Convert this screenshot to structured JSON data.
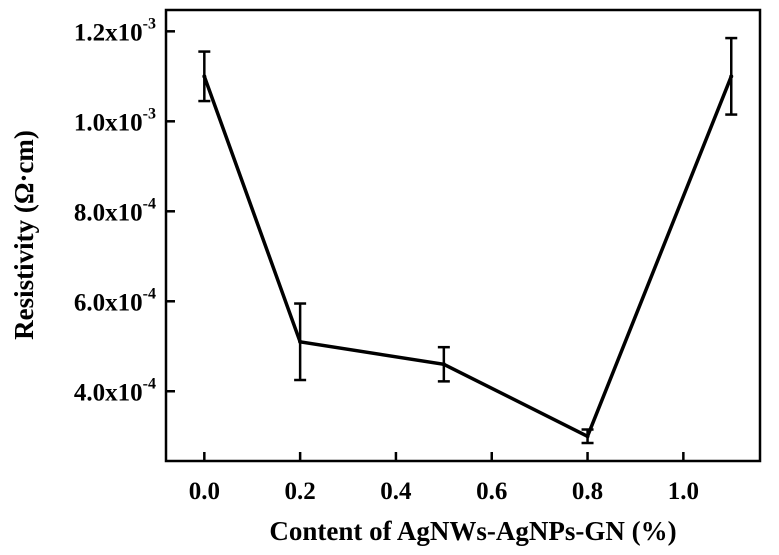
{
  "chart_data": {
    "type": "line",
    "title": "",
    "xlabel": "Content of AgNWs-AgNPs-GN (%)",
    "ylabel": "Resistivity (Ω·cm)",
    "xlim": [
      -0.08,
      1.16
    ],
    "ylim": [
      0.000245,
      0.0012474
    ],
    "x_ticks": [
      {
        "value": 0.0,
        "label": "0.0"
      },
      {
        "value": 0.2,
        "label": "0.2"
      },
      {
        "value": 0.4,
        "label": "0.4"
      },
      {
        "value": 0.6,
        "label": "0.6"
      },
      {
        "value": 0.8,
        "label": "0.8"
      },
      {
        "value": 1.0,
        "label": "1.0"
      }
    ],
    "y_ticks": [
      {
        "value": 0.0004,
        "mantissa": "4.0x10",
        "exponent": "-4"
      },
      {
        "value": 0.0006,
        "mantissa": "6.0x10",
        "exponent": "-4"
      },
      {
        "value": 0.0008,
        "mantissa": "8.0x10",
        "exponent": "-4"
      },
      {
        "value": 0.001,
        "mantissa": "1.0x10",
        "exponent": "-3"
      },
      {
        "value": 0.0012,
        "mantissa": "1.2x10",
        "exponent": "-3"
      }
    ],
    "series": [
      {
        "x": [
          0.0,
          0.2,
          0.5,
          0.8,
          1.1
        ],
        "y": [
          0.0011,
          0.00051,
          0.00046,
          0.0003,
          0.0011
        ],
        "yerr": [
          5.5e-05,
          8.5e-05,
          3.8e-05,
          1.5e-05,
          8.5e-05
        ]
      }
    ],
    "grid": false,
    "legend": "none",
    "line_color": "#000000"
  }
}
